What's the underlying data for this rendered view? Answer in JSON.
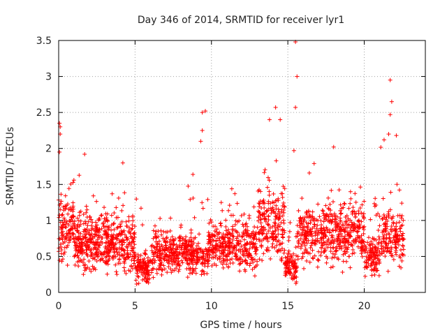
{
  "chart_data": {
    "type": "scatter",
    "title": "Day 346 of 2014, SRMTID for receiver lyr1",
    "xlabel": "GPS time / hours",
    "ylabel": "SRMTID / TECUs",
    "xlim": [
      0,
      24
    ],
    "ylim": [
      0,
      3.5
    ],
    "x_ticks": [
      0,
      5,
      10,
      15,
      20
    ],
    "x_tick_labels": [
      "0",
      "5",
      "10",
      "15",
      "20"
    ],
    "y_ticks": [
      0,
      0.5,
      1,
      1.5,
      2,
      2.5,
      3,
      3.5
    ],
    "y_tick_labels": [
      "0",
      "0.5",
      "1",
      "1.5",
      "2",
      "2.5",
      "3",
      "3.5"
    ],
    "grid": true,
    "marker": "+",
    "color": "#ff0000",
    "series": [
      {
        "name": "lyr1",
        "x_range": [
          0,
          22.6
        ],
        "notable_points": [
          {
            "x": 0.05,
            "y": 2.35
          },
          {
            "x": 0.1,
            "y": 2.3
          },
          {
            "x": 0.1,
            "y": 2.2
          },
          {
            "x": 0.05,
            "y": 1.95
          },
          {
            "x": 9.4,
            "y": 2.5
          },
          {
            "x": 9.6,
            "y": 2.52
          },
          {
            "x": 9.4,
            "y": 2.25
          },
          {
            "x": 9.3,
            "y": 2.1
          },
          {
            "x": 14.2,
            "y": 2.57
          },
          {
            "x": 13.8,
            "y": 2.4
          },
          {
            "x": 14.5,
            "y": 2.4
          },
          {
            "x": 15.5,
            "y": 3.48
          },
          {
            "x": 15.6,
            "y": 3.0
          },
          {
            "x": 15.5,
            "y": 2.57
          },
          {
            "x": 15.4,
            "y": 1.97
          },
          {
            "x": 21.7,
            "y": 2.95
          },
          {
            "x": 21.8,
            "y": 2.65
          },
          {
            "x": 21.7,
            "y": 2.47
          },
          {
            "x": 21.6,
            "y": 2.2
          },
          {
            "x": 22.1,
            "y": 2.18
          },
          {
            "x": 21.3,
            "y": 2.12
          },
          {
            "x": 18.0,
            "y": 2.02
          },
          {
            "x": 1.7,
            "y": 1.92
          },
          {
            "x": 4.2,
            "y": 1.8
          }
        ]
      }
    ]
  }
}
